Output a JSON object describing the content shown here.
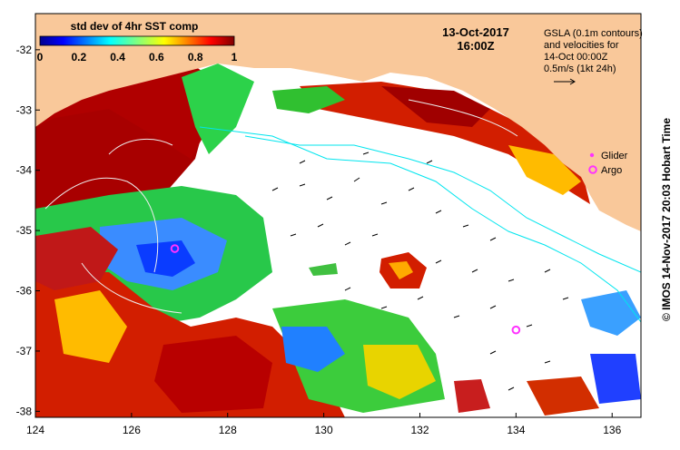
{
  "map": {
    "date_line": "13-Oct-2017",
    "time_line": "16:00Z",
    "gsla_note_lines": [
      "GSLA (0.1m contours)",
      "and velocities for",
      "14-Oct 00:00Z",
      "0.5m/s (1kt 24h)"
    ],
    "legend_glider": "Glider",
    "legend_argo": "Argo",
    "credit": "© IMOS 14-Nov-2017 20:03 Hobart Time",
    "land_color": "#f9c89a",
    "contour_color": "#00e5ee",
    "glider_color": "#ff33ff",
    "argo_color": "#ff33ff"
  },
  "colorbar": {
    "title": "std dev of 4hr SST comp",
    "ticks": [
      "0",
      "0.2",
      "0.4",
      "0.6",
      "0.8",
      "1"
    ],
    "range": [
      0,
      1
    ]
  },
  "axes": {
    "xlim": [
      124,
      136.6
    ],
    "ylim": [
      -38.1,
      -31.4
    ],
    "xticks": [
      124,
      126,
      128,
      130,
      132,
      134,
      136
    ],
    "yticks": [
      -32,
      -33,
      -34,
      -35,
      -36,
      -37,
      -38
    ],
    "xtick_labels": [
      "124",
      "126",
      "128",
      "130",
      "132",
      "134",
      "136"
    ],
    "ytick_labels": [
      "-32",
      "-33",
      "-34",
      "-35",
      "-36",
      "-37",
      "-38"
    ]
  },
  "markers": {
    "argo": [
      {
        "lon": 126.9,
        "lat": -35.3
      },
      {
        "lon": 134.0,
        "lat": -36.65
      }
    ]
  }
}
